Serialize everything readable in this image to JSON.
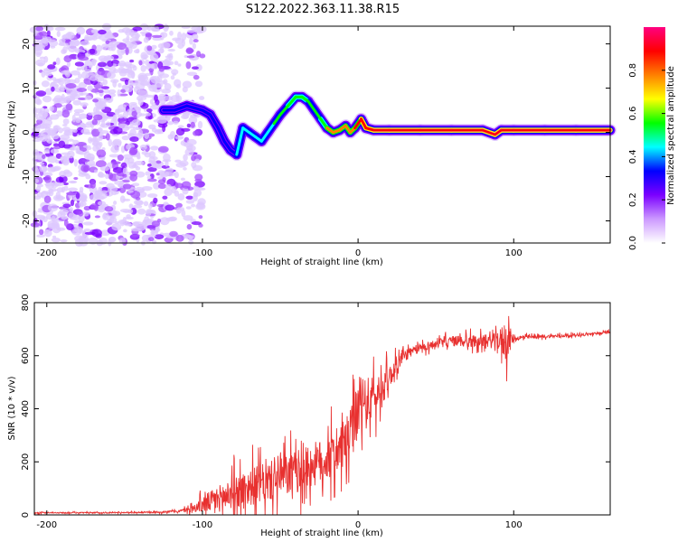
{
  "title": "S122.2022.363.11.38.R15",
  "colors": {
    "snr_line": "#e8302f",
    "axis": "#000000",
    "background": "#ffffff"
  },
  "chart_data": [
    {
      "type": "heatmap",
      "name": "spectrogram",
      "xlabel": "Height of straight line (km)",
      "ylabel": "Frequency (Hz)",
      "xlim": [
        -208,
        162
      ],
      "ylim": [
        -25,
        24
      ],
      "xticks": [
        -200,
        -100,
        0,
        100
      ],
      "yticks": [
        -20,
        -10,
        0,
        10,
        20
      ],
      "colorbar": {
        "label": "Normalized spectral amplitude",
        "range": [
          0,
          1
        ],
        "ticks": [
          0.0,
          0.2,
          0.4,
          0.6,
          0.8
        ],
        "colormap": [
          "#ffffff",
          "#cc99ff",
          "#7b00ff",
          "#0000ff",
          "#00ffff",
          "#00ff00",
          "#ffff00",
          "#ff8000",
          "#ff0000",
          "#ff0080"
        ]
      },
      "noise_region_x": [
        -208,
        -110
      ],
      "signal_track": {
        "x": [
          -125,
          -118,
          -110,
          -105,
          -100,
          -95,
          -90,
          -86,
          -82,
          -78,
          -74,
          -70,
          -66,
          -62,
          -58,
          -54,
          -50,
          -45,
          -40,
          -36,
          -32,
          -28,
          -24,
          -20,
          -16,
          -12,
          -8,
          -5,
          -2,
          2,
          5,
          10,
          20,
          40,
          60,
          80,
          88,
          92,
          100,
          120,
          140,
          162
        ],
        "y": [
          5,
          5,
          6,
          5.5,
          5,
          4,
          1,
          -2,
          -4,
          -5,
          1,
          0,
          -1,
          -2,
          0,
          2,
          4,
          6,
          8,
          8,
          7,
          5,
          3,
          1,
          0,
          0.5,
          1.5,
          0,
          1,
          3,
          1,
          0.5,
          0.5,
          0.5,
          0.5,
          0.5,
          -0.5,
          0.5,
          0.5,
          0.5,
          0.5,
          0.5
        ],
        "amplitude": [
          0.3,
          0.3,
          0.3,
          0.3,
          0.3,
          0.3,
          0.35,
          0.35,
          0.35,
          0.35,
          0.4,
          0.4,
          0.4,
          0.4,
          0.4,
          0.45,
          0.5,
          0.55,
          0.6,
          0.6,
          0.6,
          0.55,
          0.55,
          0.6,
          0.75,
          0.75,
          0.75,
          0.8,
          0.8,
          0.85,
          0.9,
          0.9,
          0.95,
          0.95,
          0.95,
          0.95,
          0.95,
          0.95,
          0.95,
          0.95,
          0.95,
          0.95
        ]
      }
    },
    {
      "type": "line",
      "name": "snr",
      "xlabel": "Height of straight line (km)",
      "ylabel": "SNR (10 * v/v)",
      "xlim": [
        -208,
        162
      ],
      "ylim": [
        0,
        800
      ],
      "xticks": [
        -200,
        -100,
        0,
        100
      ],
      "yticks": [
        0,
        200,
        400,
        600,
        800
      ],
      "series": [
        {
          "name": "SNR",
          "x": [
            -208,
            -190,
            -170,
            -150,
            -130,
            -115,
            -105,
            -100,
            -90,
            -80,
            -70,
            -60,
            -50,
            -40,
            -30,
            -20,
            -10,
            -5,
            0,
            5,
            10,
            15,
            20,
            25,
            30,
            40,
            50,
            60,
            70,
            80,
            90,
            95,
            100,
            110,
            120,
            130,
            140,
            150,
            162
          ],
          "y": [
            8,
            8,
            8,
            9,
            10,
            14,
            25,
            40,
            60,
            85,
            105,
            120,
            140,
            160,
            185,
            210,
            250,
            300,
            390,
            420,
            440,
            470,
            520,
            570,
            600,
            630,
            645,
            655,
            655,
            655,
            655,
            660,
            665,
            670,
            672,
            675,
            678,
            682,
            688
          ],
          "noise_amp": [
            3,
            3,
            3,
            3,
            4,
            6,
            20,
            45,
            70,
            90,
            100,
            105,
            110,
            115,
            120,
            120,
            120,
            140,
            150,
            140,
            120,
            100,
            60,
            40,
            30,
            25,
            22,
            28,
            35,
            30,
            45,
            120,
            15,
            10,
            8,
            8,
            7,
            7,
            7
          ]
        }
      ]
    }
  ]
}
